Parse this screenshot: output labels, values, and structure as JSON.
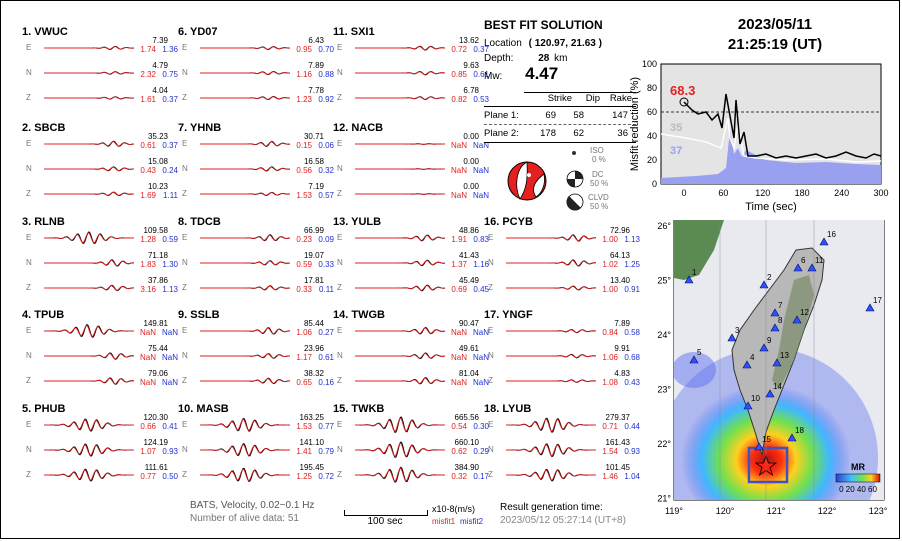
{
  "date": "2023/05/11",
  "time": "21:25:19  (UT)",
  "best_fit": {
    "title": "BEST FIT SOLUTION",
    "location_label": "Location",
    "location_value": "( 120.97, 21.63 )",
    "depth_label": "Depth:",
    "depth_value": "28",
    "depth_unit": "km",
    "mw_label": "Mw:",
    "mw_value": "4.47",
    "headers": [
      "Strike",
      "Dip",
      "Rake"
    ],
    "planes": [
      {
        "label": "Plane 1:",
        "strike": "69",
        "dip": "58",
        "rake": "147"
      },
      {
        "label": "Plane 2:",
        "strike": "178",
        "dip": "62",
        "rake": "36"
      }
    ],
    "iso_label": "ISO",
    "iso_value": "0 %",
    "dc_label": "DC",
    "dc_value": "50 %",
    "clvd_label": "CLVD",
    "clvd_value": "50 %"
  },
  "misfit_chart": {
    "ylabel": "Misfit reduction (%)",
    "xlabel": "Time (sec)",
    "best_value": "68.3",
    "label35": "35",
    "label37": "37",
    "yticks": [
      "0",
      "20",
      "40",
      "60",
      "80",
      "100"
    ],
    "xticks": [
      "0",
      "60",
      "120",
      "180",
      "240",
      "300"
    ]
  },
  "map": {
    "lat_labels": [
      "26°",
      "25°",
      "24°",
      "23°",
      "22°",
      "21°"
    ],
    "lon_labels": [
      "119°",
      "120°",
      "121°",
      "122°",
      "123°"
    ],
    "legend_title": "MR",
    "legend_ticks": "0 20 40 60",
    "station_numbers": [
      "1",
      "2",
      "3",
      "4",
      "5",
      "6",
      "7",
      "8",
      "9",
      "10",
      "11",
      "12",
      "13",
      "14",
      "15",
      "16",
      "17",
      "18"
    ]
  },
  "footer": {
    "source": "BATS, Velocity, 0.02~0.1 Hz",
    "alive": "Number of alive data: 51",
    "scale": "100 sec",
    "units": "x10-8(m/s)",
    "misfit1": "misfit1",
    "misfit2": "misfit2",
    "gen_label": "Result generation time:",
    "gen_time": "2023/05/12 05:27:14 (UT+8)"
  },
  "stations": [
    {
      "name": "1.  VWUC",
      "rows": [
        [
          "7.39",
          "1.74",
          "1.36"
        ],
        [
          "4.79",
          "2.32",
          "0.75"
        ],
        [
          "4.04",
          "1.61",
          "0.37"
        ]
      ]
    },
    {
      "name": "2.  SBCB",
      "rows": [
        [
          "35.23",
          "0.61",
          "0.37"
        ],
        [
          "15.08",
          "0.43",
          "0.24"
        ],
        [
          "10.23",
          "1.69",
          "1.11"
        ]
      ]
    },
    {
      "name": "3.  RLNB",
      "rows": [
        [
          "109.58",
          "1.28",
          "0.59"
        ],
        [
          "71.18",
          "1.83",
          "1.30"
        ],
        [
          "37.86",
          "3.16",
          "1.13"
        ]
      ]
    },
    {
      "name": "4.  TPUB",
      "rows": [
        [
          "149.81",
          "NaN",
          "NaN"
        ],
        [
          "75.44",
          "NaN",
          "NaN"
        ],
        [
          "79.06",
          "NaN",
          "NaN"
        ]
      ]
    },
    {
      "name": "5.  PHUB",
      "rows": [
        [
          "120.30",
          "0.66",
          "0.41"
        ],
        [
          "124.19",
          "1.07",
          "0.93"
        ],
        [
          "111.61",
          "0.77",
          "0.50"
        ]
      ]
    },
    {
      "name": "6.  YD07",
      "rows": [
        [
          "6.43",
          "0.95",
          "0.70"
        ],
        [
          "7.89",
          "1.16",
          "0.88"
        ],
        [
          "7.78",
          "1.23",
          "0.92"
        ]
      ]
    },
    {
      "name": "7.  YHNB",
      "rows": [
        [
          "30.71",
          "0.15",
          "0.06"
        ],
        [
          "16.58",
          "0.56",
          "0.32"
        ],
        [
          "7.19",
          "1.53",
          "0.57"
        ]
      ]
    },
    {
      "name": "8.  TDCB",
      "rows": [
        [
          "66.99",
          "0.23",
          "0.09"
        ],
        [
          "19.07",
          "0.59",
          "0.33"
        ],
        [
          "17.81",
          "0.33",
          "0.11"
        ]
      ]
    },
    {
      "name": "9.  SSLB",
      "rows": [
        [
          "85.44",
          "1.06",
          "0.27"
        ],
        [
          "23.96",
          "1.17",
          "0.61"
        ],
        [
          "38.32",
          "0.65",
          "0.16"
        ]
      ]
    },
    {
      "name": "10. MASB",
      "rows": [
        [
          "163.25",
          "1.53",
          "0.77"
        ],
        [
          "141.10",
          "1.41",
          "0.79"
        ],
        [
          "195.45",
          "1.25",
          "0.72"
        ]
      ]
    },
    {
      "name": "11. SXI1",
      "rows": [
        [
          "13.62",
          "0.72",
          "0.37"
        ],
        [
          "9.63",
          "0.85",
          "0.61"
        ],
        [
          "6.78",
          "0.82",
          "0.53"
        ]
      ]
    },
    {
      "name": "12. NACB",
      "rows": [
        [
          "0.00",
          "NaN",
          "NaN"
        ],
        [
          "0.00",
          "NaN",
          "NaN"
        ],
        [
          "0.00",
          "NaN",
          "NaN"
        ]
      ]
    },
    {
      "name": "13. YULB",
      "rows": [
        [
          "48.86",
          "1.91",
          "0.83"
        ],
        [
          "41.43",
          "1.37",
          "1.16"
        ],
        [
          "45.49",
          "0.69",
          "0.45"
        ]
      ]
    },
    {
      "name": "14. TWGB",
      "rows": [
        [
          "90.47",
          "NaN",
          "NaN"
        ],
        [
          "49.61",
          "NaN",
          "NaN"
        ],
        [
          "81.04",
          "NaN",
          "NaN"
        ]
      ]
    },
    {
      "name": "15. TWKB",
      "rows": [
        [
          "665.56",
          "0.54",
          "0.30"
        ],
        [
          "660.10",
          "0.62",
          "0.29"
        ],
        [
          "384.90",
          "0.32",
          "0.17"
        ]
      ]
    },
    {
      "name": "16. PCYB",
      "rows": [
        [
          "72.96",
          "1.00",
          "1.13"
        ],
        [
          "64.13",
          "1.02",
          "1.25"
        ],
        [
          "13.40",
          "1.00",
          "0.91"
        ]
      ]
    },
    {
      "name": "17. YNGF",
      "rows": [
        [
          "7.89",
          "0.84",
          "0.58"
        ],
        [
          "9.91",
          "1.06",
          "0.68"
        ],
        [
          "4.83",
          "1.08",
          "0.43"
        ]
      ]
    },
    {
      "name": "18. LYUB",
      "rows": [
        [
          "279.37",
          "0.71",
          "0.44"
        ],
        [
          "161.43",
          "1.54",
          "0.93"
        ],
        [
          "101.45",
          "1.46",
          "1.04"
        ]
      ]
    }
  ],
  "components": [
    "E",
    "N",
    "Z"
  ]
}
